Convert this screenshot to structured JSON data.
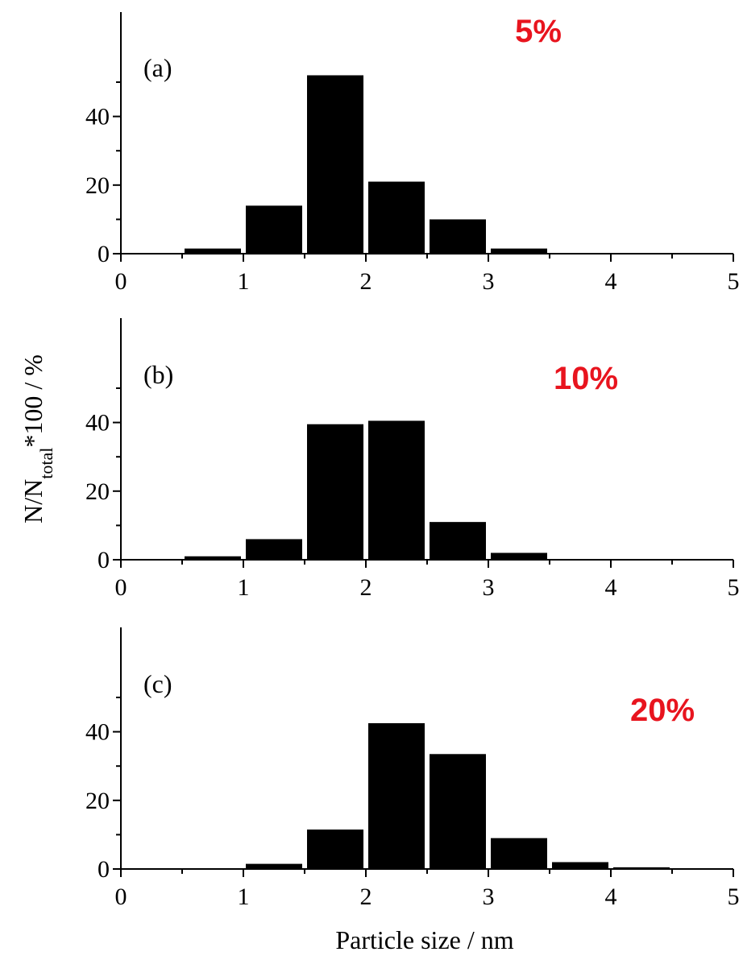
{
  "chart_data": {
    "type": "bar",
    "xlabel": "Particle size / nm",
    "ylabel_main": "N/N",
    "ylabel_sub": "total",
    "ylabel_rest": "*100 / %",
    "xlim": [
      0,
      5
    ],
    "ylim": [
      0,
      55
    ],
    "xticks": [
      0,
      1,
      2,
      3,
      4,
      5
    ],
    "yticks": [
      0,
      20,
      40
    ],
    "bin_width": 0.5,
    "panels": [
      {
        "label": "(a)",
        "annotation": "5%",
        "bins": [
          {
            "x": 0.75,
            "value": 1.5
          },
          {
            "x": 1.25,
            "value": 14
          },
          {
            "x": 1.75,
            "value": 52
          },
          {
            "x": 2.25,
            "value": 21
          },
          {
            "x": 2.75,
            "value": 10
          },
          {
            "x": 3.25,
            "value": 1.5
          }
        ]
      },
      {
        "label": "(b)",
        "annotation": "10%",
        "bins": [
          {
            "x": 0.75,
            "value": 1
          },
          {
            "x": 1.25,
            "value": 6
          },
          {
            "x": 1.75,
            "value": 39.5
          },
          {
            "x": 2.25,
            "value": 40.5
          },
          {
            "x": 2.75,
            "value": 11
          },
          {
            "x": 3.25,
            "value": 2
          }
        ]
      },
      {
        "label": "(c)",
        "annotation": "20%",
        "bins": [
          {
            "x": 1.25,
            "value": 1.5
          },
          {
            "x": 1.75,
            "value": 11.5
          },
          {
            "x": 2.25,
            "value": 42.5
          },
          {
            "x": 2.75,
            "value": 33.5
          },
          {
            "x": 3.25,
            "value": 9
          },
          {
            "x": 3.75,
            "value": 2
          },
          {
            "x": 4.25,
            "value": 0.5
          }
        ]
      }
    ]
  }
}
